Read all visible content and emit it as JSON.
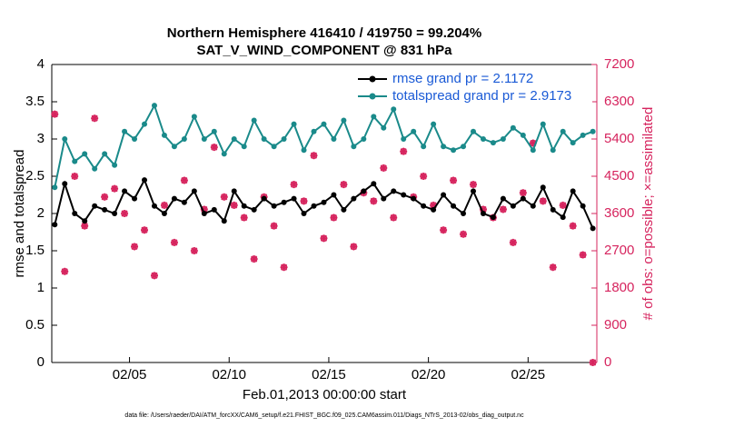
{
  "chart_data": {
    "type": "line",
    "title": "Northern Hemisphere 416410 / 419750 = 99.204%",
    "subtitle": "SAT_V_WIND_COMPONENT @ 831 hPa",
    "x_label": "Feb.01,2013 00:00:00 start",
    "y_label": "rmse and totalspread",
    "y2_label": "# of obs: o=possible; ×=assimilated",
    "footnote": "data file: /Users/raeder/DAI/ATM_forcXX/CAM6_setup/f.e21.FHIST_BGC.f09_025.CAM6assim.011/Diags_NTrS_2013-02/obs_diag_output.nc",
    "x": [
      0.25,
      0.75,
      1.25,
      1.75,
      2.25,
      2.75,
      3.25,
      3.75,
      4.25,
      4.75,
      5.25,
      5.75,
      6.25,
      6.75,
      7.25,
      7.75,
      8.25,
      8.75,
      9.25,
      9.75,
      10.25,
      10.75,
      11.25,
      11.75,
      12.25,
      12.75,
      13.25,
      13.75,
      14.25,
      14.75,
      15.25,
      15.75,
      16.25,
      16.75,
      17.25,
      17.75,
      18.25,
      18.75,
      19.25,
      19.75,
      20.25,
      20.75,
      21.25,
      21.75,
      22.25,
      22.75,
      23.25,
      23.75,
      24.25,
      24.75,
      25.25,
      25.75,
      26.25,
      26.75,
      27.25
    ],
    "xlim": [
      0.1,
      27.45
    ],
    "xticks": [
      {
        "value": 4,
        "label": "02/05"
      },
      {
        "value": 9,
        "label": "02/10"
      },
      {
        "value": 14,
        "label": "02/15"
      },
      {
        "value": 19,
        "label": "02/20"
      },
      {
        "value": 24,
        "label": "02/25"
      }
    ],
    "ylim": [
      0,
      4
    ],
    "yticks": [
      0,
      0.5,
      1,
      1.5,
      2,
      2.5,
      3,
      3.5,
      4
    ],
    "y2lim": [
      0,
      7200
    ],
    "y2ticks": [
      0,
      900,
      1800,
      2700,
      3600,
      4500,
      5400,
      6300,
      7200
    ],
    "legend": "upper right",
    "series": [
      {
        "name": "rmse grand pr = 2.1172",
        "color": "#000000",
        "values": [
          1.85,
          2.4,
          2.0,
          1.9,
          2.1,
          2.05,
          2.0,
          2.3,
          2.2,
          2.45,
          2.1,
          2.0,
          2.2,
          2.15,
          2.3,
          2.0,
          2.05,
          1.9,
          2.3,
          2.1,
          2.05,
          2.2,
          2.1,
          2.15,
          2.2,
          2.0,
          2.1,
          2.15,
          2.25,
          2.05,
          2.2,
          2.3,
          2.4,
          2.2,
          2.3,
          2.25,
          2.2,
          2.1,
          2.05,
          2.25,
          2.1,
          2.0,
          2.3,
          2.0,
          1.95,
          2.2,
          2.1,
          2.2,
          2.1,
          2.35,
          2.05,
          1.95,
          2.3,
          2.1,
          1.8
        ]
      },
      {
        "name": "totalspread grand pr = 2.9173",
        "color": "#1a8a8a",
        "values": [
          2.35,
          3.0,
          2.7,
          2.8,
          2.6,
          2.8,
          2.65,
          3.1,
          3.0,
          3.2,
          3.45,
          3.05,
          2.9,
          3.0,
          3.3,
          3.0,
          3.1,
          2.8,
          3.0,
          2.9,
          3.25,
          3.0,
          2.9,
          3.0,
          3.2,
          2.85,
          3.1,
          3.2,
          3.0,
          3.25,
          2.9,
          3.0,
          3.3,
          3.15,
          3.4,
          3.0,
          3.1,
          2.9,
          3.2,
          2.9,
          2.85,
          2.9,
          3.1,
          3.0,
          2.95,
          3.0,
          3.15,
          3.05,
          2.85,
          3.2,
          2.85,
          3.1,
          2.95,
          3.05,
          3.1
        ]
      }
    ],
    "obs_series": {
      "color": "#d6245e",
      "axis": "y2",
      "values": [
        6000,
        2200,
        4500,
        3300,
        5900,
        4000,
        4200,
        3600,
        2800,
        3200,
        2100,
        3800,
        2900,
        4400,
        2700,
        3700,
        5200,
        4000,
        3800,
        3500,
        2500,
        4000,
        3300,
        2300,
        4300,
        3900,
        5000,
        3000,
        3500,
        4300,
        2800,
        4100,
        3900,
        4700,
        3500,
        5100,
        4000,
        4500,
        3800,
        3200,
        4400,
        3100,
        4300,
        3700,
        3500,
        3700,
        2900,
        4100,
        5300,
        3900,
        2300,
        3800,
        3300,
        2600,
        0
      ]
    }
  }
}
